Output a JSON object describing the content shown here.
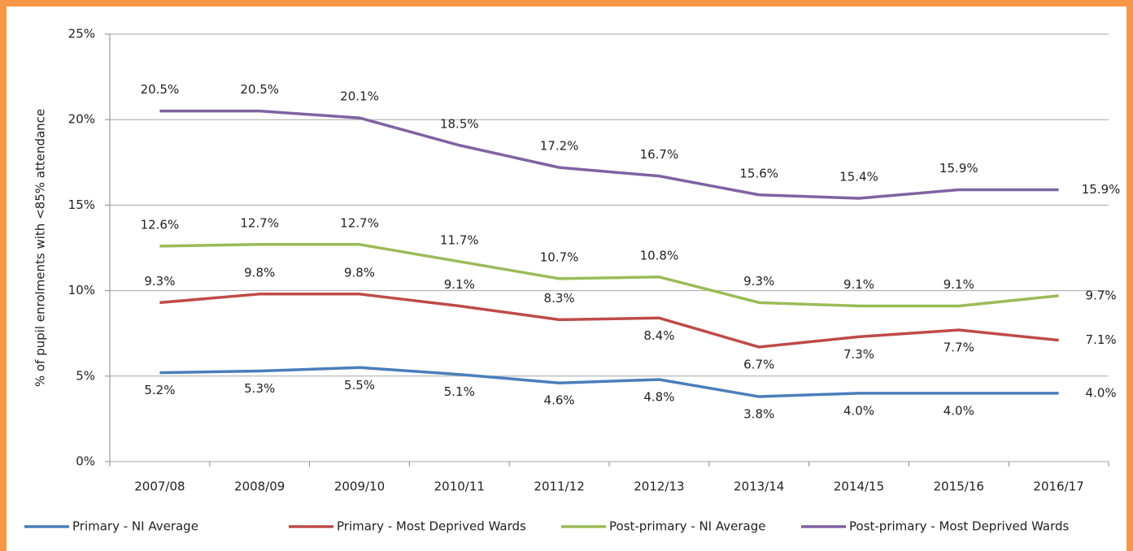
{
  "chart_data": {
    "type": "line",
    "y_label": "% of pupil enrolments with <85% attendance",
    "categories": [
      "2007/08",
      "2008/09",
      "2009/10",
      "2010/11",
      "2011/12",
      "2012/13",
      "2013/14",
      "2014/15",
      "2015/16",
      "2016/17"
    ],
    "series": [
      {
        "name": "Primary - NI Average",
        "color": "#4a7ebb",
        "values": [
          5.2,
          5.3,
          5.5,
          5.1,
          4.6,
          4.8,
          3.8,
          4.0,
          4.0,
          4.0
        ],
        "value_labels": [
          "5.2%",
          "5.3%",
          "5.5%",
          "5.1%",
          "4.6%",
          "4.8%",
          "3.8%",
          "4.0%",
          "4.0%",
          "4.0%"
        ]
      },
      {
        "name": "Primary - Most Deprived Wards",
        "color": "#be4b48",
        "values": [
          9.3,
          9.8,
          9.8,
          9.1,
          8.3,
          8.4,
          6.7,
          7.3,
          7.7,
          7.1
        ],
        "value_labels": [
          "9.3%",
          "9.8%",
          "9.8%",
          "9.1%",
          "8.3%",
          "8.4%",
          "6.7%",
          "7.3%",
          "7.7%",
          "7.1%"
        ]
      },
      {
        "name": "Post-primary - NI Average",
        "color": "#9bbb59",
        "values": [
          12.6,
          12.7,
          12.7,
          11.7,
          10.7,
          10.8,
          9.3,
          9.1,
          9.1,
          9.7
        ],
        "value_labels": [
          "12.6%",
          "12.7%",
          "12.7%",
          "11.7%",
          "10.7%",
          "10.8%",
          "9.3%",
          "9.1%",
          "9.1%",
          "9.7%"
        ]
      },
      {
        "name": "Post-primary - Most Deprived Wards",
        "color": "#7f63a1",
        "values": [
          20.5,
          20.5,
          20.1,
          18.5,
          17.2,
          16.7,
          15.6,
          15.4,
          15.9,
          15.9
        ],
        "value_labels": [
          "20.5%",
          "20.5%",
          "20.1%",
          "18.5%",
          "17.2%",
          "16.7%",
          "15.6%",
          "15.4%",
          "15.9%",
          "15.9%"
        ]
      }
    ],
    "ylim": [
      0,
      25
    ],
    "yticks": [
      {
        "value": 0,
        "label": "0%"
      },
      {
        "value": 5,
        "label": "5%"
      },
      {
        "value": 10,
        "label": "10%"
      },
      {
        "value": 15,
        "label": "15%"
      },
      {
        "value": 20,
        "label": "20%"
      },
      {
        "value": 25,
        "label": "25%"
      }
    ],
    "grid": true,
    "legend": "bottom"
  }
}
